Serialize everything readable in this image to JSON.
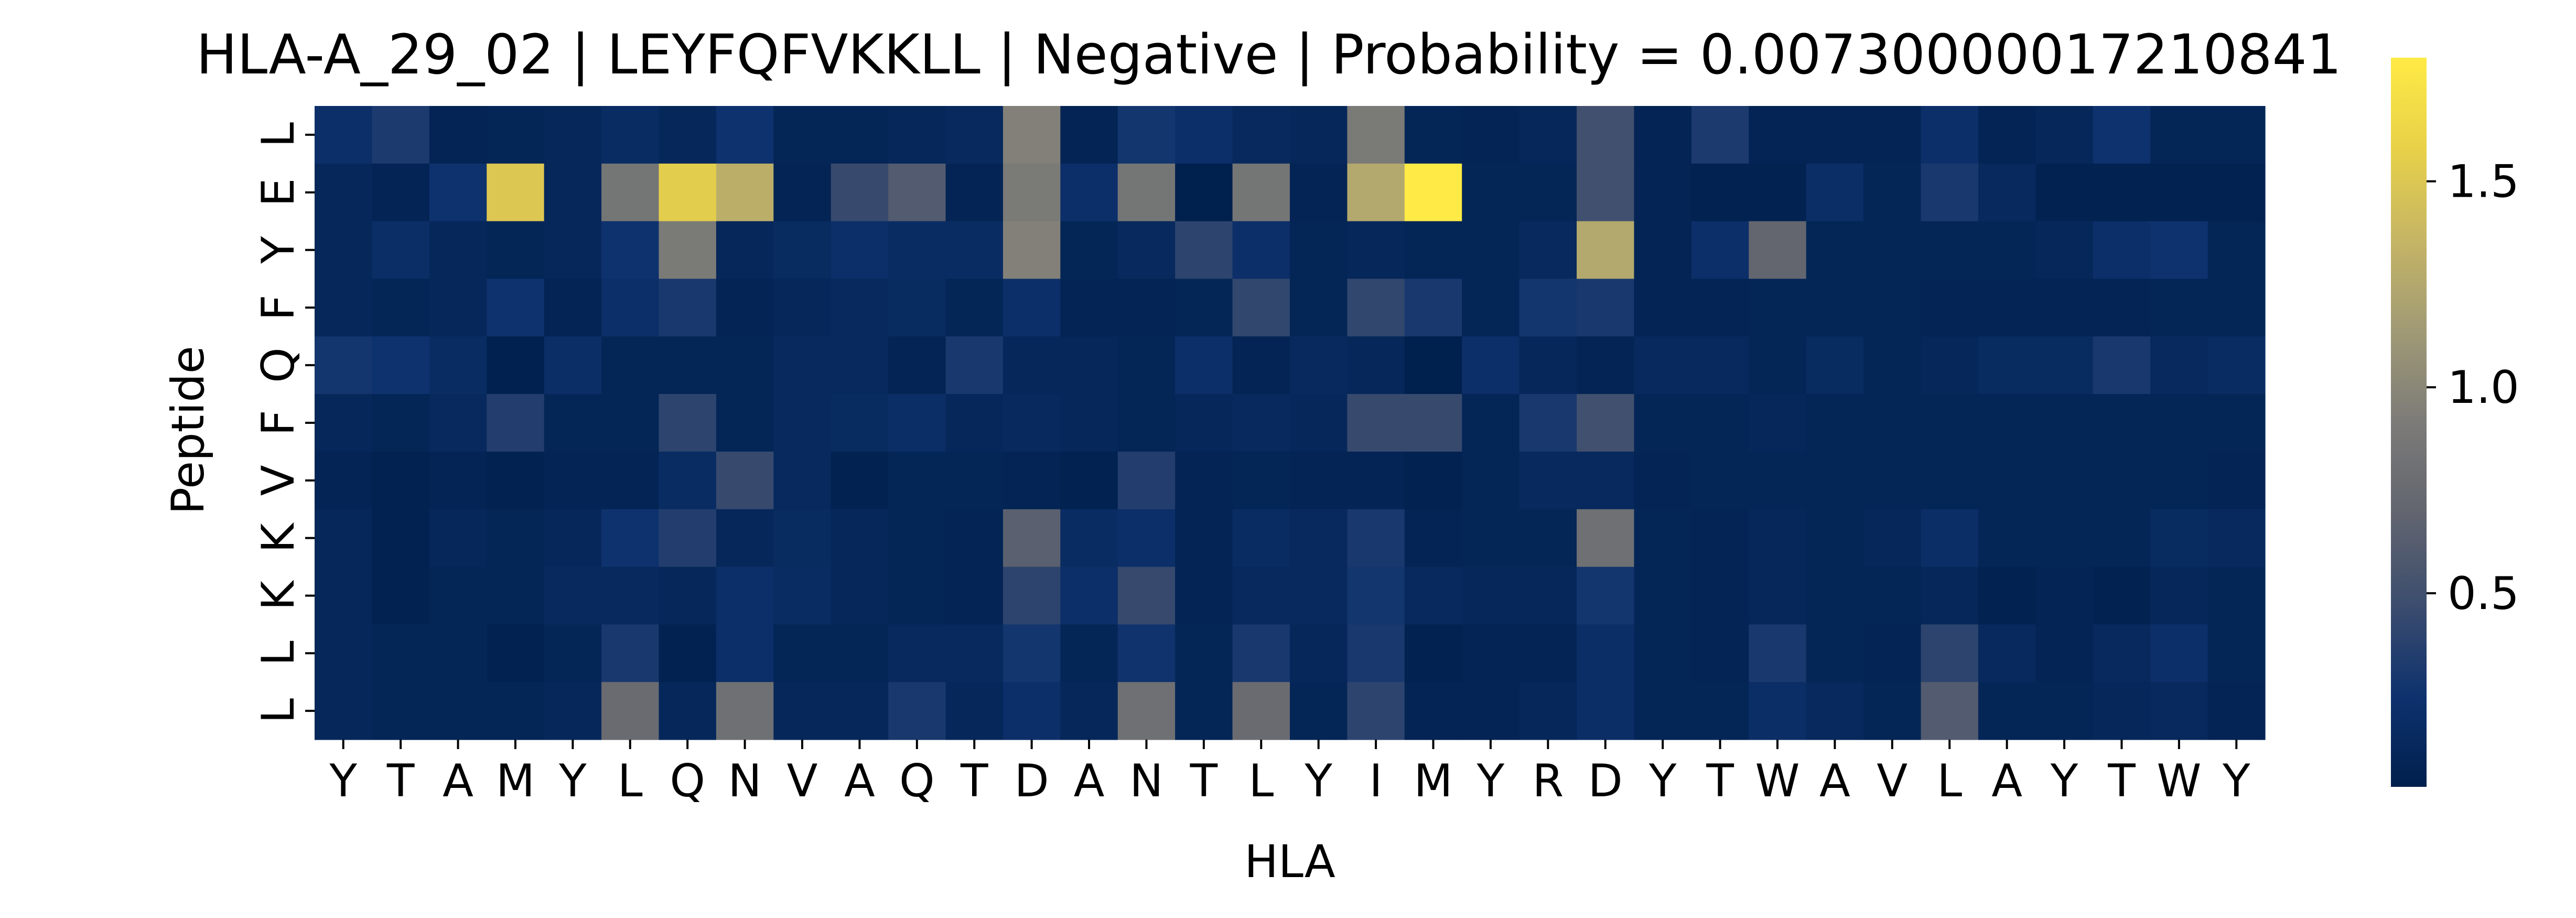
{
  "chart_data": {
    "type": "heatmap",
    "title": "HLA-A_29_02 | LEYFQFVKKLL | Negative | Probability = 0.00730000017210841",
    "xlabel": "HLA",
    "ylabel": "Peptide",
    "x_categories": [
      "Y",
      "T",
      "A",
      "M",
      "Y",
      "L",
      "Q",
      "N",
      "V",
      "A",
      "Q",
      "T",
      "D",
      "A",
      "N",
      "T",
      "L",
      "Y",
      "I",
      "M",
      "Y",
      "R",
      "D",
      "Y",
      "T",
      "W",
      "A",
      "V",
      "L",
      "A",
      "Y",
      "T",
      "W",
      "Y"
    ],
    "y_categories": [
      "L",
      "E",
      "Y",
      "F",
      "Q",
      "F",
      "V",
      "K",
      "K",
      "L",
      "L"
    ],
    "colormap": "cividis",
    "colorbar": {
      "min": 0.03,
      "max": 1.8,
      "ticks": [
        0.5,
        1.0,
        1.5
      ],
      "tick_labels": [
        "0.5",
        "1.0",
        "1.5"
      ]
    },
    "values": [
      [
        0.22,
        0.32,
        0.08,
        0.1,
        0.12,
        0.18,
        0.12,
        0.25,
        0.1,
        0.1,
        0.12,
        0.14,
        0.95,
        0.08,
        0.28,
        0.22,
        0.14,
        0.12,
        0.9,
        0.1,
        0.08,
        0.12,
        0.5,
        0.08,
        0.32,
        0.08,
        0.08,
        0.08,
        0.22,
        0.08,
        0.12,
        0.25,
        0.1,
        0.1
      ],
      [
        0.12,
        0.08,
        0.25,
        1.5,
        0.12,
        0.85,
        1.55,
        1.3,
        0.08,
        0.45,
        0.6,
        0.08,
        0.9,
        0.22,
        0.85,
        0.03,
        0.85,
        0.08,
        1.25,
        1.8,
        0.1,
        0.1,
        0.5,
        0.08,
        0.06,
        0.06,
        0.2,
        0.1,
        0.3,
        0.14,
        0.06,
        0.06,
        0.06,
        0.06
      ],
      [
        0.12,
        0.2,
        0.12,
        0.1,
        0.12,
        0.25,
        0.9,
        0.12,
        0.16,
        0.22,
        0.18,
        0.18,
        0.95,
        0.1,
        0.14,
        0.4,
        0.22,
        0.1,
        0.12,
        0.1,
        0.1,
        0.14,
        1.25,
        0.08,
        0.22,
        0.7,
        0.1,
        0.1,
        0.1,
        0.1,
        0.12,
        0.22,
        0.25,
        0.1
      ],
      [
        0.12,
        0.1,
        0.12,
        0.25,
        0.08,
        0.22,
        0.3,
        0.08,
        0.12,
        0.14,
        0.16,
        0.1,
        0.22,
        0.08,
        0.08,
        0.1,
        0.42,
        0.1,
        0.42,
        0.3,
        0.1,
        0.28,
        0.3,
        0.08,
        0.08,
        0.1,
        0.1,
        0.1,
        0.08,
        0.08,
        0.08,
        0.08,
        0.1,
        0.1
      ],
      [
        0.28,
        0.25,
        0.18,
        0.05,
        0.2,
        0.1,
        0.1,
        0.1,
        0.14,
        0.14,
        0.08,
        0.3,
        0.12,
        0.12,
        0.1,
        0.22,
        0.08,
        0.14,
        0.12,
        0.03,
        0.22,
        0.12,
        0.08,
        0.14,
        0.14,
        0.1,
        0.16,
        0.1,
        0.12,
        0.16,
        0.16,
        0.3,
        0.14,
        0.18
      ],
      [
        0.12,
        0.1,
        0.14,
        0.35,
        0.1,
        0.1,
        0.4,
        0.1,
        0.14,
        0.16,
        0.2,
        0.12,
        0.14,
        0.12,
        0.1,
        0.12,
        0.14,
        0.12,
        0.45,
        0.45,
        0.1,
        0.3,
        0.5,
        0.1,
        0.1,
        0.12,
        0.1,
        0.1,
        0.1,
        0.1,
        0.1,
        0.1,
        0.1,
        0.1
      ],
      [
        0.08,
        0.06,
        0.08,
        0.06,
        0.08,
        0.08,
        0.18,
        0.45,
        0.14,
        0.06,
        0.1,
        0.1,
        0.08,
        0.06,
        0.35,
        0.08,
        0.1,
        0.08,
        0.08,
        0.06,
        0.1,
        0.14,
        0.14,
        0.08,
        0.1,
        0.1,
        0.1,
        0.1,
        0.1,
        0.1,
        0.1,
        0.1,
        0.1,
        0.08
      ],
      [
        0.12,
        0.06,
        0.12,
        0.1,
        0.12,
        0.25,
        0.35,
        0.12,
        0.16,
        0.12,
        0.1,
        0.08,
        0.65,
        0.18,
        0.22,
        0.08,
        0.18,
        0.14,
        0.3,
        0.08,
        0.1,
        0.1,
        0.8,
        0.1,
        0.08,
        0.12,
        0.1,
        0.12,
        0.2,
        0.1,
        0.1,
        0.1,
        0.16,
        0.14
      ],
      [
        0.12,
        0.06,
        0.1,
        0.1,
        0.14,
        0.14,
        0.12,
        0.22,
        0.18,
        0.12,
        0.1,
        0.08,
        0.4,
        0.22,
        0.45,
        0.08,
        0.14,
        0.14,
        0.28,
        0.14,
        0.12,
        0.12,
        0.28,
        0.1,
        0.08,
        0.12,
        0.1,
        0.1,
        0.12,
        0.06,
        0.08,
        0.06,
        0.12,
        0.1
      ],
      [
        0.12,
        0.1,
        0.1,
        0.06,
        0.1,
        0.3,
        0.06,
        0.22,
        0.1,
        0.1,
        0.14,
        0.14,
        0.28,
        0.1,
        0.26,
        0.1,
        0.3,
        0.12,
        0.3,
        0.06,
        0.08,
        0.08,
        0.2,
        0.1,
        0.08,
        0.3,
        0.1,
        0.08,
        0.4,
        0.14,
        0.08,
        0.14,
        0.22,
        0.1
      ],
      [
        0.12,
        0.1,
        0.1,
        0.1,
        0.12,
        0.75,
        0.12,
        0.8,
        0.12,
        0.12,
        0.3,
        0.12,
        0.22,
        0.12,
        0.8,
        0.1,
        0.75,
        0.1,
        0.4,
        0.08,
        0.08,
        0.12,
        0.2,
        0.1,
        0.1,
        0.2,
        0.14,
        0.1,
        0.6,
        0.1,
        0.1,
        0.12,
        0.14,
        0.08
      ]
    ]
  }
}
